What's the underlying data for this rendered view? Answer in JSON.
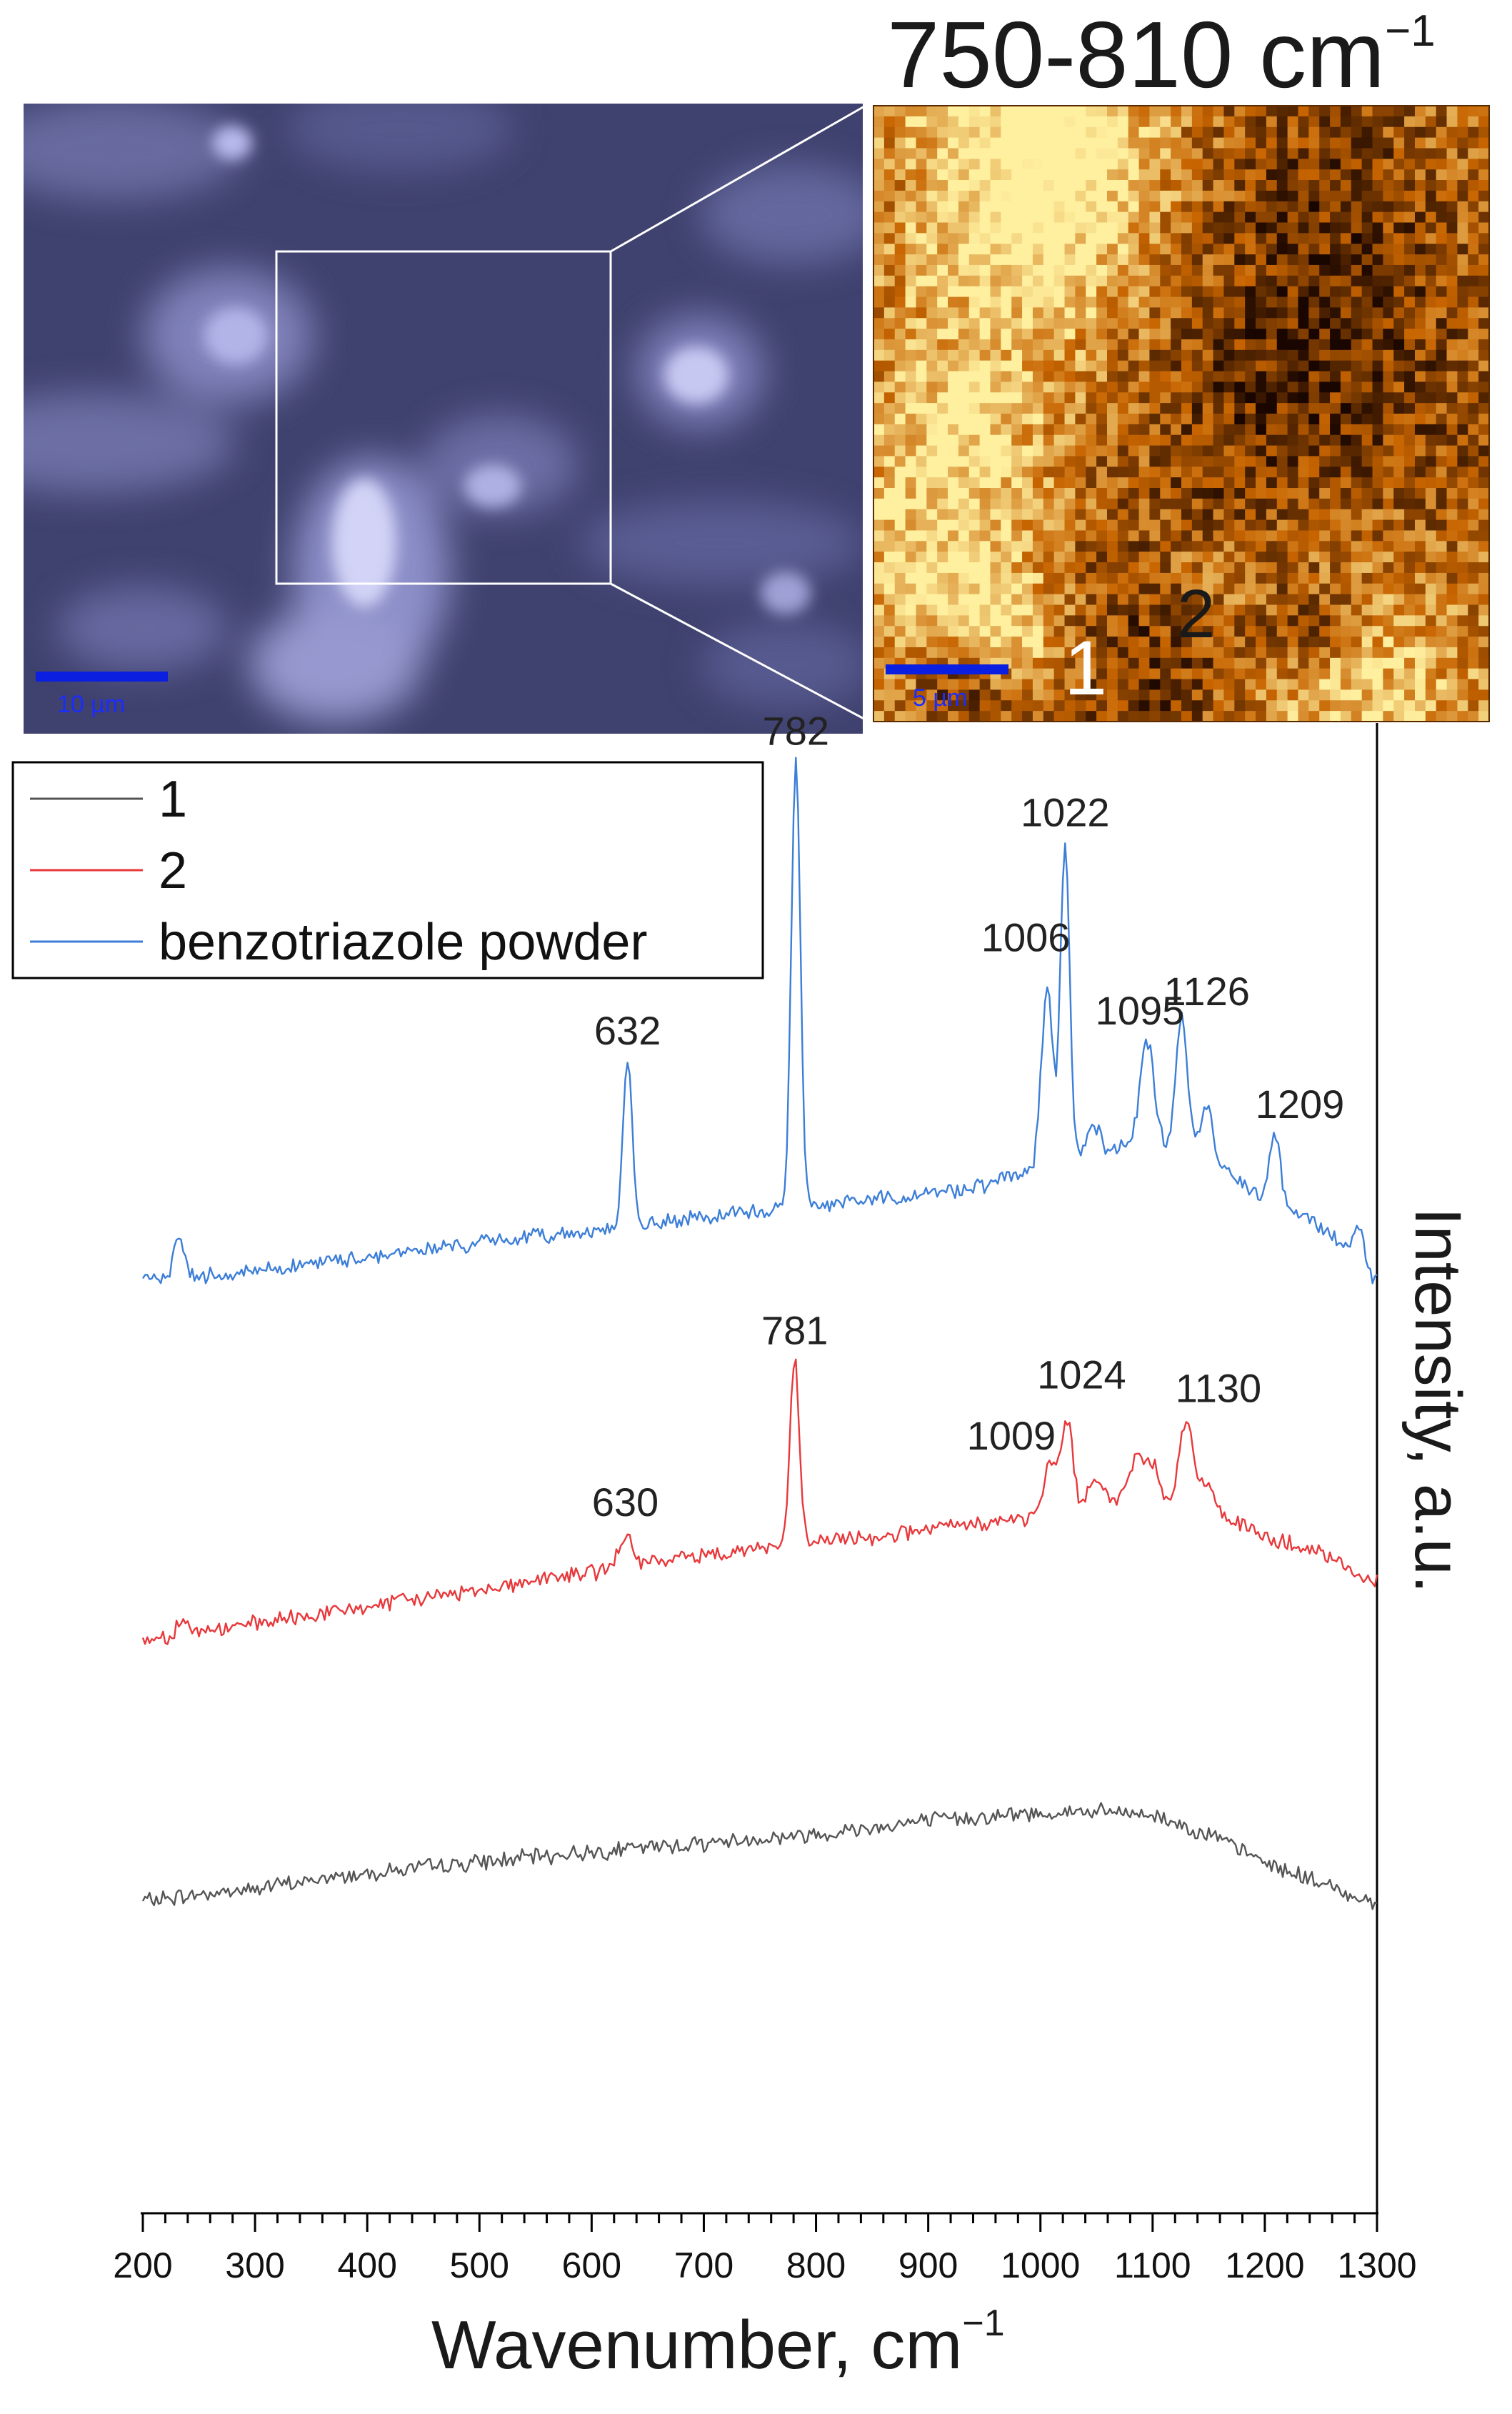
{
  "map_panel": {
    "title_prefix": "750-810 cm",
    "title_sup": "−1",
    "point_labels": [
      "1",
      "2"
    ],
    "scale_bar_label": "5 µm"
  },
  "micrograph_panel": {
    "scale_bar_label": "10 µm"
  },
  "colors": {
    "series_1": "#555555",
    "series_2": "#e8383b",
    "series_3": "#3c7ed8",
    "map_dark": "#1a0600",
    "map_mid": "#c76400",
    "map_bright": "#fff0a0",
    "micrograph_base": "#3f416e",
    "scale_bar": "#0a1fe0"
  },
  "chart_data": {
    "type": "line",
    "title": "",
    "xlabel": "Wavenumber, cm",
    "xlabel_sup": "−1",
    "ylabel": "Intensity, a.u.",
    "xlim": [
      200,
      1300
    ],
    "x_ticks": [
      200,
      300,
      400,
      500,
      600,
      700,
      800,
      900,
      1000,
      1100,
      1200,
      1300
    ],
    "x_tick_labels": [
      "200",
      "300",
      "400",
      "500",
      "600",
      "700",
      "800",
      "900",
      "1000",
      "1100",
      "1200",
      "1300"
    ],
    "y_axis_position": "right",
    "y_ticks_shown": false,
    "legend_position": "top-left",
    "series": [
      {
        "name": "1",
        "color_key": "series_1",
        "offset": 0,
        "baseline": [
          [
            200,
            14
          ],
          [
            300,
            21
          ],
          [
            400,
            30
          ],
          [
            500,
            36
          ],
          [
            600,
            42
          ],
          [
            700,
            47
          ],
          [
            800,
            52
          ],
          [
            900,
            60
          ],
          [
            1000,
            64
          ],
          [
            1050,
            65
          ],
          [
            1100,
            63
          ],
          [
            1150,
            52
          ],
          [
            1200,
            36
          ],
          [
            1250,
            24
          ],
          [
            1300,
            12
          ]
        ],
        "peaks": []
      },
      {
        "name": "2",
        "color_key": "series_2",
        "offset": 160,
        "baseline": [
          [
            200,
            3
          ],
          [
            300,
            12
          ],
          [
            400,
            22
          ],
          [
            500,
            32
          ],
          [
            600,
            42
          ],
          [
            700,
            52
          ],
          [
            780,
            58
          ],
          [
            850,
            62
          ],
          [
            900,
            66
          ],
          [
            950,
            70
          ],
          [
            1000,
            73
          ],
          [
            1050,
            80
          ],
          [
            1100,
            83
          ],
          [
            1150,
            78
          ],
          [
            1200,
            62
          ],
          [
            1250,
            52
          ],
          [
            1300,
            35
          ]
        ],
        "peaks": [
          [
            235,
            9,
            5
          ],
          [
            630,
            20,
            5
          ],
          [
            781,
            105,
            4
          ],
          [
            1009,
            30,
            6
          ],
          [
            1024,
            52,
            5
          ],
          [
            1050,
            18,
            6
          ],
          [
            1085,
            24,
            7
          ],
          [
            1100,
            20,
            6
          ],
          [
            1130,
            50,
            6
          ],
          [
            1150,
            14,
            6
          ]
        ]
      },
      {
        "name": "benzotriazole powder",
        "color_key": "series_3",
        "offset": 360,
        "baseline": [
          [
            200,
            8
          ],
          [
            300,
            14
          ],
          [
            400,
            22
          ],
          [
            500,
            30
          ],
          [
            600,
            37
          ],
          [
            700,
            44
          ],
          [
            800,
            52
          ],
          [
            900,
            58
          ],
          [
            960,
            64
          ],
          [
            1000,
            74
          ],
          [
            1050,
            84
          ],
          [
            1100,
            86
          ],
          [
            1150,
            80
          ],
          [
            1200,
            55
          ],
          [
            1250,
            40
          ],
          [
            1300,
            8
          ]
        ],
        "peaks": [
          [
            232,
            22,
            5
          ],
          [
            632,
            95,
            4
          ],
          [
            782,
            255,
            4
          ],
          [
            1006,
            100,
            5
          ],
          [
            1022,
            180,
            4
          ],
          [
            1047,
            14,
            5
          ],
          [
            1095,
            60,
            6
          ],
          [
            1126,
            78,
            5
          ],
          [
            1148,
            28,
            5
          ],
          [
            1209,
            40,
            5
          ],
          [
            1283,
            22,
            5
          ]
        ]
      }
    ],
    "annotations": [
      {
        "series": "2",
        "x": 630,
        "label": "630"
      },
      {
        "series": "2",
        "x": 781,
        "label": "781"
      },
      {
        "series": "2",
        "x": 1009,
        "label": "1009"
      },
      {
        "series": "2",
        "x": 1024,
        "label": "1024"
      },
      {
        "series": "2",
        "x": 1130,
        "label": "1130"
      },
      {
        "series": "benzotriazole powder",
        "x": 632,
        "label": "632"
      },
      {
        "series": "benzotriazole powder",
        "x": 782,
        "label": "782"
      },
      {
        "series": "benzotriazole powder",
        "x": 1006,
        "label": "1006"
      },
      {
        "series": "benzotriazole powder",
        "x": 1022,
        "label": "1022"
      },
      {
        "series": "benzotriazole powder",
        "x": 1095,
        "label": "1095"
      },
      {
        "series": "benzotriazole powder",
        "x": 1126,
        "label": "1126"
      },
      {
        "series": "benzotriazole powder",
        "x": 1209,
        "label": "1209"
      }
    ]
  }
}
